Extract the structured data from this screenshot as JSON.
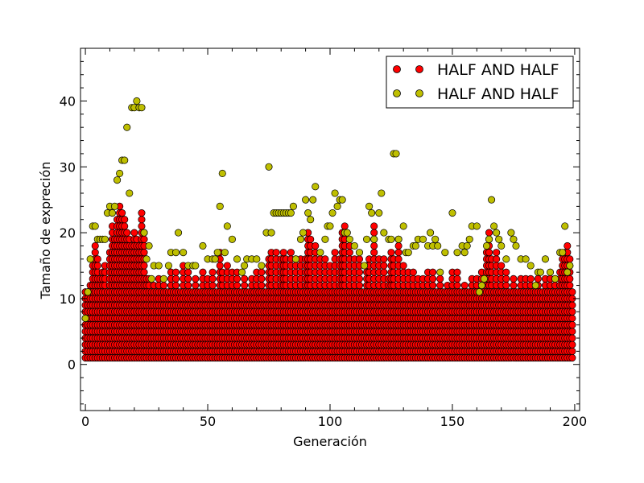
{
  "chart_data": {
    "type": "scatter",
    "xlabel": "Generación",
    "ylabel": "Tamaño de expreción",
    "xlim": [
      -2,
      202
    ],
    "ylim": [
      -7,
      48
    ],
    "xticks": [
      0,
      50,
      100,
      150,
      200
    ],
    "yticks": [
      0,
      10,
      20,
      30,
      40
    ],
    "legend_position": "top-right",
    "grid": false,
    "series": [
      {
        "name": "HALF AND HALF",
        "color": "#ff0000",
        "edge_color": "#000000",
        "description": "dense band at every generation 0-199",
        "band": {
          "min_size": 1,
          "max_size": 11
        },
        "x": [
          2,
          3,
          4,
          5,
          6,
          7,
          8,
          10,
          11,
          12,
          13,
          14,
          15,
          16,
          17,
          18,
          19,
          20,
          21,
          22,
          23,
          24,
          25,
          26,
          28,
          30,
          32,
          35,
          37,
          40,
          42,
          45,
          48,
          50,
          52,
          55,
          56,
          58,
          60,
          62,
          65,
          68,
          70,
          72,
          75,
          76,
          78,
          80,
          81,
          82,
          84,
          86,
          88,
          90,
          91,
          92,
          94,
          96,
          98,
          100,
          102,
          104,
          105,
          106,
          108,
          110,
          112,
          115,
          116,
          118,
          120,
          122,
          124,
          125,
          126,
          128,
          130,
          132,
          134,
          136,
          138,
          140,
          142,
          145,
          148,
          150,
          152,
          155,
          158,
          160,
          162,
          164,
          165,
          166,
          168,
          170,
          172,
          175,
          178,
          180,
          182,
          185,
          188,
          190,
          192,
          194,
          195,
          196,
          197,
          198
        ],
        "y": [
          12,
          15,
          18,
          16,
          13,
          14,
          15,
          17,
          21,
          19,
          22,
          24,
          23,
          22,
          20,
          19,
          18,
          20,
          19,
          18,
          23,
          20,
          13,
          13,
          12,
          13,
          12,
          14,
          14,
          15,
          14,
          13,
          14,
          13,
          14,
          17,
          14,
          15,
          14,
          14,
          13,
          13,
          14,
          14,
          16,
          17,
          17,
          16,
          17,
          16,
          17,
          16,
          16,
          16,
          20,
          19,
          18,
          16,
          16,
          15,
          17,
          16,
          20,
          21,
          18,
          16,
          16,
          15,
          16,
          21,
          16,
          16,
          13,
          17,
          16,
          19,
          15,
          14,
          14,
          13,
          13,
          14,
          14,
          13,
          12,
          14,
          14,
          12,
          13,
          13,
          14,
          17,
          20,
          16,
          17,
          15,
          14,
          13,
          13,
          13,
          13,
          13,
          13,
          13,
          13,
          14,
          16,
          17,
          18,
          16
        ]
      },
      {
        "name": "HALF AND HALF",
        "color": "#bfbf00",
        "edge_color": "#000000",
        "x": [
          0,
          1,
          2,
          3,
          4,
          5,
          6,
          7,
          8,
          9,
          10,
          11,
          12,
          13,
          14,
          15,
          16,
          17,
          18,
          19,
          20,
          21,
          22,
          23,
          24,
          25,
          26,
          27,
          28,
          30,
          32,
          34,
          35,
          37,
          38,
          40,
          42,
          44,
          45,
          48,
          50,
          52,
          53,
          54,
          55,
          56,
          57,
          58,
          60,
          62,
          64,
          65,
          66,
          68,
          70,
          72,
          74,
          75,
          76,
          77,
          78,
          79,
          80,
          81,
          82,
          83,
          84,
          85,
          86,
          88,
          89,
          90,
          91,
          92,
          93,
          94,
          96,
          98,
          99,
          100,
          101,
          102,
          103,
          104,
          105,
          106,
          107,
          108,
          110,
          112,
          114,
          115,
          116,
          117,
          118,
          120,
          121,
          122,
          124,
          125,
          126,
          127,
          128,
          130,
          131,
          132,
          134,
          135,
          136,
          138,
          140,
          141,
          142,
          143,
          144,
          145,
          147,
          150,
          152,
          154,
          155,
          156,
          157,
          158,
          160,
          161,
          162,
          163,
          164,
          165,
          166,
          167,
          168,
          169,
          170,
          172,
          174,
          175,
          176,
          178,
          180,
          182,
          184,
          185,
          186,
          188,
          190,
          192,
          194,
          195,
          196,
          197,
          198
        ],
        "y": [
          7,
          11,
          16,
          21,
          21,
          19,
          19,
          19,
          19,
          23,
          24,
          23,
          24,
          28,
          29,
          31,
          31,
          36,
          26,
          39,
          39,
          40,
          39,
          39,
          20,
          16,
          18,
          13,
          15,
          15,
          13,
          15,
          17,
          17,
          20,
          17,
          15,
          15,
          15,
          18,
          16,
          16,
          16,
          17,
          24,
          29,
          17,
          21,
          19,
          16,
          14,
          15,
          16,
          16,
          16,
          15,
          20,
          30,
          20,
          23,
          23,
          23,
          23,
          23,
          23,
          23,
          23,
          24,
          16,
          19,
          20,
          25,
          23,
          22,
          25,
          27,
          17,
          19,
          21,
          21,
          23,
          26,
          24,
          25,
          25,
          20,
          20,
          19,
          18,
          17,
          15,
          19,
          24,
          23,
          19,
          23,
          26,
          20,
          19,
          19,
          32,
          32,
          19,
          21,
          17,
          17,
          18,
          18,
          19,
          19,
          18,
          20,
          18,
          19,
          18,
          14,
          17,
          23,
          17,
          18,
          17,
          18,
          19,
          21,
          21,
          11,
          12,
          13,
          18,
          19,
          25,
          21,
          20,
          19,
          18,
          16,
          20,
          19,
          18,
          16,
          16,
          15,
          12,
          14,
          14,
          16,
          14,
          13,
          17,
          17,
          21,
          14,
          15
        ]
      }
    ]
  }
}
